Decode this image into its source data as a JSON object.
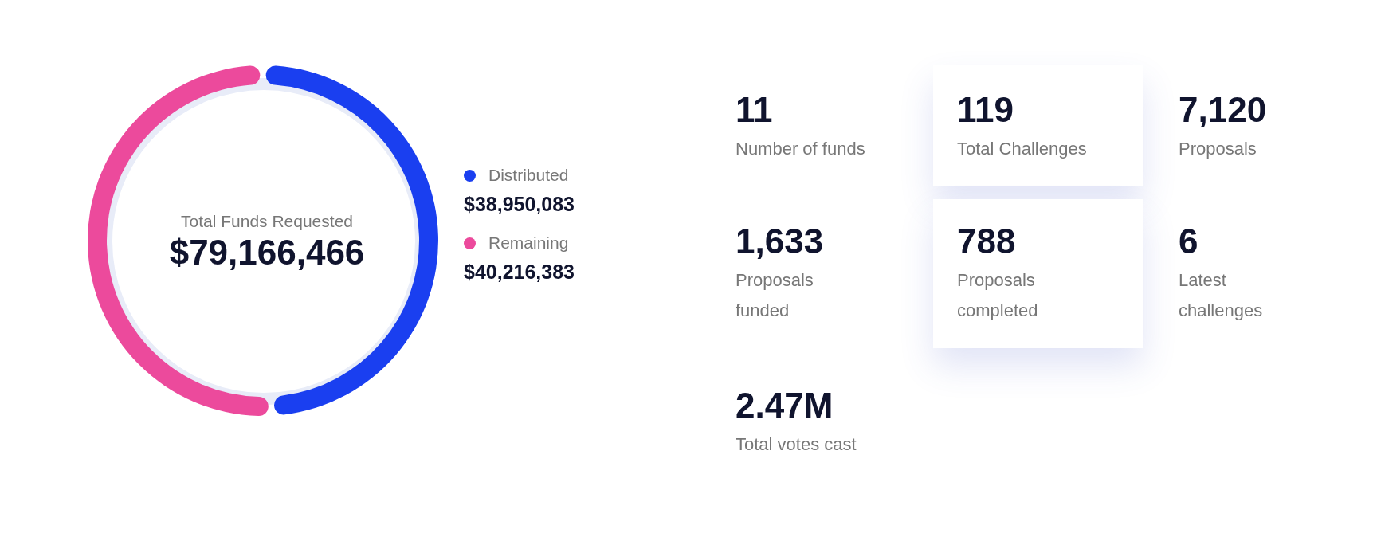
{
  "chart_data": [
    {
      "type": "donut",
      "title": "Total Funds Requested",
      "subtitle": "$79,166,466",
      "categories": [
        "Distributed",
        "Remaining"
      ],
      "values": [
        38950083,
        40216383
      ],
      "colors": [
        "#1a3ff0",
        "#ec4a9c"
      ],
      "value_labels": [
        "$38,950,083",
        "$40,216,383"
      ],
      "legend": "right"
    },
    {
      "type": "other",
      "categories": [
        "Number of funds",
        "Total Challenges",
        "Proposals",
        "Proposals funded",
        "Proposals completed",
        "Latest challenges",
        "Total votes cast"
      ],
      "value_labels": [
        "11",
        "119",
        "7,120",
        "1,633",
        "788",
        "6",
        "2.47M"
      ]
    }
  ]
}
